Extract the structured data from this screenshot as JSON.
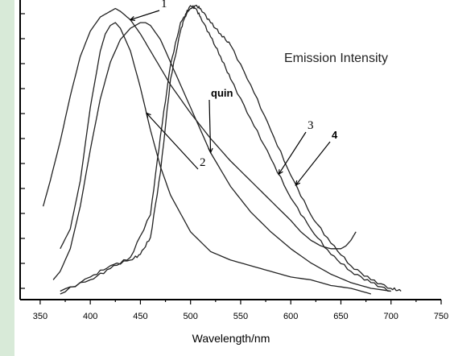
{
  "chart_data": {
    "type": "line",
    "title": "",
    "annotation": "Emission Intensity",
    "xlabel": "Wavelength/nm",
    "ylabel": "",
    "xlim": [
      330,
      750
    ],
    "ylim": [
      0,
      1.06
    ],
    "x_ticks": [
      350,
      400,
      450,
      500,
      550,
      600,
      650,
      700,
      750
    ],
    "grid": false,
    "legend": "none",
    "series": [
      {
        "name": "1",
        "x": [
          353,
          360,
          370,
          380,
          390,
          400,
          410,
          420,
          425,
          430,
          440,
          450,
          460,
          470,
          480,
          500,
          520,
          540,
          560,
          580,
          600,
          610,
          620,
          630,
          640,
          650,
          655,
          660,
          665
        ],
        "y": [
          0.33,
          0.42,
          0.56,
          0.72,
          0.86,
          0.95,
          1.0,
          1.02,
          1.03,
          1.02,
          0.99,
          0.94,
          0.88,
          0.82,
          0.76,
          0.66,
          0.57,
          0.49,
          0.42,
          0.35,
          0.28,
          0.24,
          0.21,
          0.19,
          0.18,
          0.18,
          0.19,
          0.21,
          0.24
        ]
      },
      {
        "name": "2",
        "x": [
          370,
          380,
          390,
          400,
          410,
          415,
          420,
          425,
          430,
          440,
          450,
          460,
          470,
          480,
          500,
          520,
          540,
          560,
          580,
          600,
          620,
          640,
          660,
          680
        ],
        "y": [
          0.18,
          0.25,
          0.42,
          0.68,
          0.88,
          0.94,
          0.97,
          0.98,
          0.96,
          0.88,
          0.75,
          0.6,
          0.47,
          0.37,
          0.24,
          0.17,
          0.14,
          0.12,
          0.1,
          0.08,
          0.07,
          0.05,
          0.04,
          0.02
        ]
      },
      {
        "name": "quin",
        "x": [
          363,
          370,
          380,
          390,
          400,
          410,
          420,
          430,
          440,
          450,
          455,
          460,
          470,
          480,
          500,
          520,
          540,
          560,
          580,
          600,
          620,
          640,
          660,
          680,
          700
        ],
        "y": [
          0.07,
          0.1,
          0.18,
          0.33,
          0.53,
          0.71,
          0.84,
          0.92,
          0.96,
          0.98,
          0.98,
          0.97,
          0.92,
          0.84,
          0.68,
          0.52,
          0.4,
          0.31,
          0.24,
          0.18,
          0.13,
          0.09,
          0.06,
          0.04,
          0.03
        ]
      },
      {
        "name": "3",
        "x": [
          370,
          400,
          420,
          440,
          450,
          460,
          470,
          480,
          490,
          495,
          500,
          505,
          510,
          520,
          530,
          540,
          560,
          580,
          600,
          620,
          640,
          660,
          680,
          700
        ],
        "y": [
          0.02,
          0.08,
          0.12,
          0.14,
          0.16,
          0.22,
          0.45,
          0.78,
          0.95,
          1.01,
          1.04,
          1.03,
          1.0,
          0.93,
          0.86,
          0.78,
          0.64,
          0.5,
          0.36,
          0.25,
          0.16,
          0.1,
          0.06,
          0.03
        ]
      },
      {
        "name": "4",
        "x": [
          370,
          400,
          420,
          440,
          460,
          470,
          480,
          490,
          500,
          505,
          510,
          520,
          530,
          540,
          560,
          580,
          600,
          620,
          640,
          660,
          680,
          700,
          710
        ],
        "y": [
          0.03,
          0.07,
          0.11,
          0.15,
          0.3,
          0.58,
          0.83,
          0.98,
          1.03,
          1.04,
          1.03,
          0.98,
          0.94,
          0.9,
          0.76,
          0.6,
          0.44,
          0.3,
          0.2,
          0.12,
          0.07,
          0.04,
          0.03
        ]
      }
    ],
    "curve_labels": [
      {
        "text": "1",
        "series": "1",
        "bold": false
      },
      {
        "text": "2",
        "series": "2",
        "bold": false
      },
      {
        "text": "quin",
        "series": "quin",
        "bold": true
      },
      {
        "text": "3",
        "series": "3",
        "bold": false
      },
      {
        "text": "4",
        "series": "4",
        "bold": true
      }
    ]
  }
}
